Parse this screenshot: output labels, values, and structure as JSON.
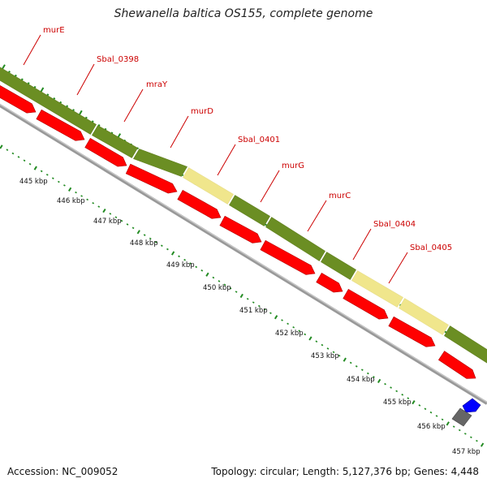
{
  "title": "Shewanella baltica OS155, complete genome",
  "footer": {
    "accession": "Accession: NC_009052",
    "summary": "Topology: circular; Length: 5,127,376 bp; Genes: 4,448"
  },
  "colors": {
    "cds_forward": "#ff0000",
    "cds_olive": "#6b8e23",
    "cds_pale": "#f0e68c",
    "backbone": "#999999",
    "ticks": "#228b22",
    "label": "#cc0000",
    "blue_feature": "#0000ff",
    "gray_feature": "#666666"
  },
  "gene_labels": [
    "murE",
    "Sbal_0398",
    "mraY",
    "murD",
    "Sbal_0401",
    "murG",
    "murC",
    "Sbal_0404",
    "Sbal_0405"
  ],
  "olive_segments": [
    "olive",
    "olive",
    "olive",
    "pale",
    "olive",
    "olive",
    "olive",
    "pale",
    "pale",
    "olive"
  ],
  "tick_labels": [
    "445 kbp",
    "446 kbp",
    "447 kbp",
    "448 kbp",
    "449 kbp",
    "450 kbp",
    "451 kbp",
    "452 kbp",
    "453 kbp",
    "454 kbp",
    "455 kbp",
    "456 kbp",
    "457 kbp"
  ]
}
